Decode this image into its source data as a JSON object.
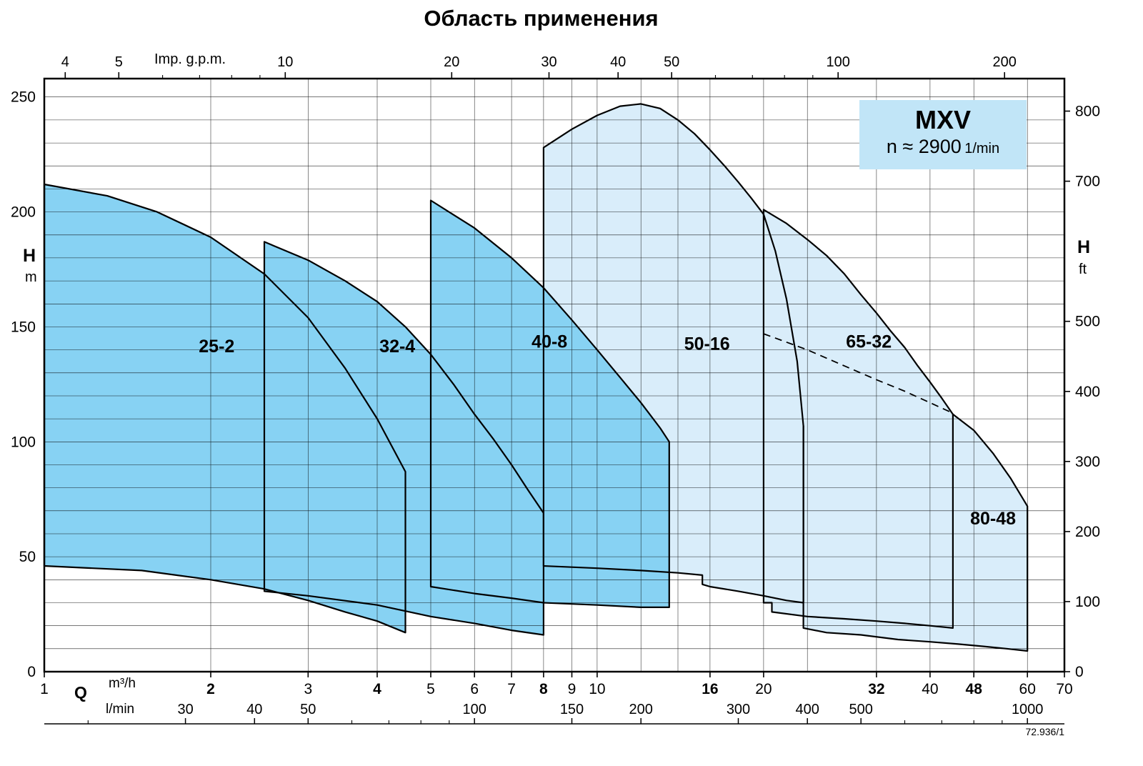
{
  "title": "Область применения",
  "stamp": "72.936/1",
  "info_box": {
    "model": "MXV",
    "speed": "n ≈ 2900",
    "speed_unit": "1/min"
  },
  "axes": {
    "top": {
      "label": "Imp. g.p.m.",
      "ticks": [
        4,
        5,
        10,
        20,
        30,
        40,
        50,
        100,
        200
      ],
      "minor_ticks": [
        6,
        7,
        8,
        9,
        60,
        70,
        80,
        90
      ],
      "gpm_per_m3h": 3.6661
    },
    "left": {
      "label": "H",
      "unit": "m",
      "ticks": [
        0,
        50,
        100,
        150,
        200,
        250
      ]
    },
    "right": {
      "label": "H",
      "unit": "ft",
      "ticks": [
        0,
        100,
        200,
        300,
        400,
        500,
        700,
        800
      ],
      "ft_per_m": 3.2808
    },
    "bottom": {
      "label": "Q",
      "unit": "m³/h",
      "ticks": [
        {
          "v": 1
        },
        {
          "v": 2,
          "bold": true
        },
        {
          "v": 3
        },
        {
          "v": 4,
          "bold": true
        },
        {
          "v": 5
        },
        {
          "v": 6
        },
        {
          "v": 7
        },
        {
          "v": 8,
          "bold": true
        },
        {
          "v": 9
        },
        {
          "v": 10
        },
        {
          "v": 16,
          "bold": true
        },
        {
          "v": 20
        },
        {
          "v": 32,
          "bold": true
        },
        {
          "v": 40
        },
        {
          "v": 48,
          "bold": true
        },
        {
          "v": 60
        },
        {
          "v": 70
        }
      ]
    },
    "bottom_lmin": {
      "unit": "l/min",
      "ticks": [
        30,
        40,
        50,
        100,
        150,
        200,
        300,
        400,
        500,
        1000
      ],
      "minor_ticks": [
        20,
        60,
        70,
        80,
        90,
        600,
        700,
        800,
        900
      ],
      "lmin_per_m3h": 16.667
    }
  },
  "chart_data": {
    "type": "area",
    "title": "Область применения",
    "x_axis": {
      "label": "Q",
      "units": [
        "m³/h",
        "l/min",
        "Imp. g.p.m."
      ],
      "scale": "log",
      "range_m3h": [
        1,
        70
      ]
    },
    "y_axis": {
      "label": "H",
      "units": [
        "m",
        "ft"
      ],
      "scale": "linear",
      "range_m": [
        0,
        250
      ],
      "display_max_m": 258
    },
    "grid": {
      "horizontal_step_m": 10,
      "vertical_q": [
        2,
        3,
        4,
        5,
        6,
        7,
        8,
        9,
        10,
        12,
        14,
        16,
        20,
        24,
        32,
        40,
        48,
        60
      ]
    },
    "colors": {
      "dark_region": "#87d2f3",
      "light_region": "#d9edfa",
      "info_box": "#c1e5f7",
      "outline": "#000000"
    },
    "regions": [
      {
        "name": "80-48",
        "shade": "light",
        "label": "80-48",
        "label_pos": [
          52,
          64
        ],
        "outline_open": true,
        "points": [
          [
            23.6,
            107
          ],
          [
            28,
            110
          ],
          [
            34,
            112
          ],
          [
            40,
            113
          ],
          [
            44,
            112
          ],
          [
            48,
            105
          ],
          [
            52,
            95
          ],
          [
            56,
            84
          ],
          [
            60,
            72
          ],
          [
            60,
            9
          ],
          [
            55,
            10
          ],
          [
            50,
            11
          ],
          [
            45,
            12
          ],
          [
            40,
            13
          ],
          [
            35,
            14
          ],
          [
            30,
            16
          ],
          [
            26,
            17
          ],
          [
            23.6,
            19
          ]
        ],
        "outline_points": [
          [
            44,
            112
          ],
          [
            48,
            105
          ],
          [
            52,
            95
          ],
          [
            56,
            84
          ],
          [
            60,
            72
          ],
          [
            60,
            9
          ],
          [
            55,
            10
          ],
          [
            50,
            11
          ],
          [
            45,
            12
          ],
          [
            40,
            13
          ],
          [
            35,
            14
          ],
          [
            30,
            16
          ],
          [
            26,
            17
          ],
          [
            23.6,
            19
          ],
          [
            23.6,
            107
          ]
        ]
      },
      {
        "name": "65-32",
        "shade": "light",
        "label": "65-32",
        "label_pos": [
          31,
          141
        ],
        "points": [
          [
            20,
            201
          ],
          [
            22,
            195
          ],
          [
            24,
            188
          ],
          [
            26,
            181
          ],
          [
            28,
            173
          ],
          [
            30,
            164
          ],
          [
            32,
            156
          ],
          [
            34,
            148
          ],
          [
            36,
            141
          ],
          [
            38,
            133
          ],
          [
            40,
            126
          ],
          [
            42,
            119
          ],
          [
            44,
            112
          ],
          [
            44,
            19
          ],
          [
            40,
            20
          ],
          [
            36,
            21
          ],
          [
            32,
            22
          ],
          [
            28,
            23
          ],
          [
            24,
            24
          ],
          [
            20.7,
            26
          ],
          [
            20.7,
            30
          ],
          [
            20,
            30
          ]
        ]
      },
      {
        "name": "50-16",
        "shade": "light",
        "label": "50-16",
        "label_pos": [
          15.8,
          140
        ],
        "points": [
          [
            8,
            228
          ],
          [
            9,
            236
          ],
          [
            10,
            242
          ],
          [
            11,
            246
          ],
          [
            12,
            247
          ],
          [
            13,
            245
          ],
          [
            14,
            240
          ],
          [
            15,
            234
          ],
          [
            16,
            227
          ],
          [
            17,
            220
          ],
          [
            18,
            213
          ],
          [
            19,
            206
          ],
          [
            20,
            199
          ],
          [
            21,
            183
          ],
          [
            22,
            162
          ],
          [
            23,
            135
          ],
          [
            23.6,
            107
          ],
          [
            23.6,
            30
          ],
          [
            22,
            31
          ],
          [
            20,
            33
          ],
          [
            18,
            35
          ],
          [
            16,
            37
          ],
          [
            15.5,
            38
          ],
          [
            15.5,
            42
          ],
          [
            14,
            43
          ],
          [
            12,
            44
          ],
          [
            10,
            45
          ],
          [
            8,
            46
          ]
        ]
      },
      {
        "name": "40-8",
        "shade": "dark",
        "label": "40-8",
        "label_pos": [
          8.2,
          141
        ],
        "points": [
          [
            5,
            205
          ],
          [
            6,
            193
          ],
          [
            7,
            180
          ],
          [
            8,
            167
          ],
          [
            9,
            153
          ],
          [
            10,
            140
          ],
          [
            11,
            128
          ],
          [
            12,
            117
          ],
          [
            13,
            106
          ],
          [
            13.5,
            100
          ],
          [
            13.5,
            28
          ],
          [
            12,
            28
          ],
          [
            10,
            29
          ],
          [
            8,
            30
          ],
          [
            7,
            32
          ],
          [
            6,
            34
          ],
          [
            5,
            37
          ]
        ]
      },
      {
        "name": "32-4",
        "shade": "dark",
        "label": "32-4",
        "label_pos": [
          4.35,
          139
        ],
        "points": [
          [
            2.5,
            187
          ],
          [
            3,
            179
          ],
          [
            3.5,
            170
          ],
          [
            4,
            161
          ],
          [
            4.5,
            150
          ],
          [
            5,
            138
          ],
          [
            5.5,
            125
          ],
          [
            6,
            112
          ],
          [
            6.5,
            101
          ],
          [
            7,
            90
          ],
          [
            7.5,
            79
          ],
          [
            8,
            69
          ],
          [
            8,
            16
          ],
          [
            7,
            18
          ],
          [
            6,
            21
          ],
          [
            5,
            24
          ],
          [
            4,
            29
          ],
          [
            3,
            33
          ],
          [
            2.5,
            35
          ]
        ]
      },
      {
        "name": "25-2",
        "shade": "dark",
        "label": "25-2",
        "label_pos": [
          2.05,
          139
        ],
        "points": [
          [
            1,
            212
          ],
          [
            1.3,
            207
          ],
          [
            1.6,
            200
          ],
          [
            2,
            189
          ],
          [
            2.5,
            173
          ],
          [
            3,
            154
          ],
          [
            3.5,
            132
          ],
          [
            4,
            110
          ],
          [
            4.5,
            87
          ],
          [
            4.5,
            17
          ],
          [
            4,
            22
          ],
          [
            3.5,
            26
          ],
          [
            3,
            31
          ],
          [
            2.5,
            36
          ],
          [
            2,
            40
          ],
          [
            1.5,
            44
          ],
          [
            1,
            46
          ]
        ]
      }
    ],
    "dashed_line": {
      "points": [
        [
          20,
          147
        ],
        [
          24,
          140
        ],
        [
          28,
          133
        ],
        [
          32,
          127
        ],
        [
          36,
          122
        ],
        [
          40,
          117
        ],
        [
          43.5,
          113
        ]
      ]
    }
  }
}
